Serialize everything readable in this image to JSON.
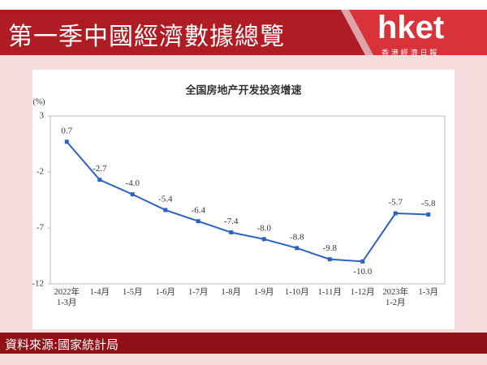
{
  "header": {
    "title": "第一季中國經濟數據總覽",
    "logo": "hket",
    "logo_subtitle": "香 港 經 濟 日 報"
  },
  "footer": {
    "source": "資料來源:國家統計局"
  },
  "chart_data": {
    "type": "line",
    "title": "全国房地产开发投资增速",
    "y_unit": "(%)",
    "categories": [
      "2022年\n1-3月",
      "1-4月",
      "1-5月",
      "1-6月",
      "1-7月",
      "1-8月",
      "1-9月",
      "1-10月",
      "1-11月",
      "1-12月",
      "2023年\n1-2月",
      "1-3月"
    ],
    "values": [
      0.7,
      -2.7,
      -4.0,
      -5.4,
      -6.4,
      -7.4,
      -8.0,
      -8.8,
      -9.8,
      -10.0,
      -5.7,
      -5.8
    ],
    "value_labels": [
      "0.7",
      "-2.7",
      "-4.0",
      "-5.4",
      "-6.4",
      "-7.4",
      "-8.0",
      "-8.8",
      "-9.8",
      "-10.0",
      "-5.7",
      "-5.8"
    ],
    "color": "#2a62c4",
    "ylim": [
      -12,
      3
    ],
    "yticks": [
      3,
      -2,
      -7,
      -12
    ],
    "grid": false
  }
}
